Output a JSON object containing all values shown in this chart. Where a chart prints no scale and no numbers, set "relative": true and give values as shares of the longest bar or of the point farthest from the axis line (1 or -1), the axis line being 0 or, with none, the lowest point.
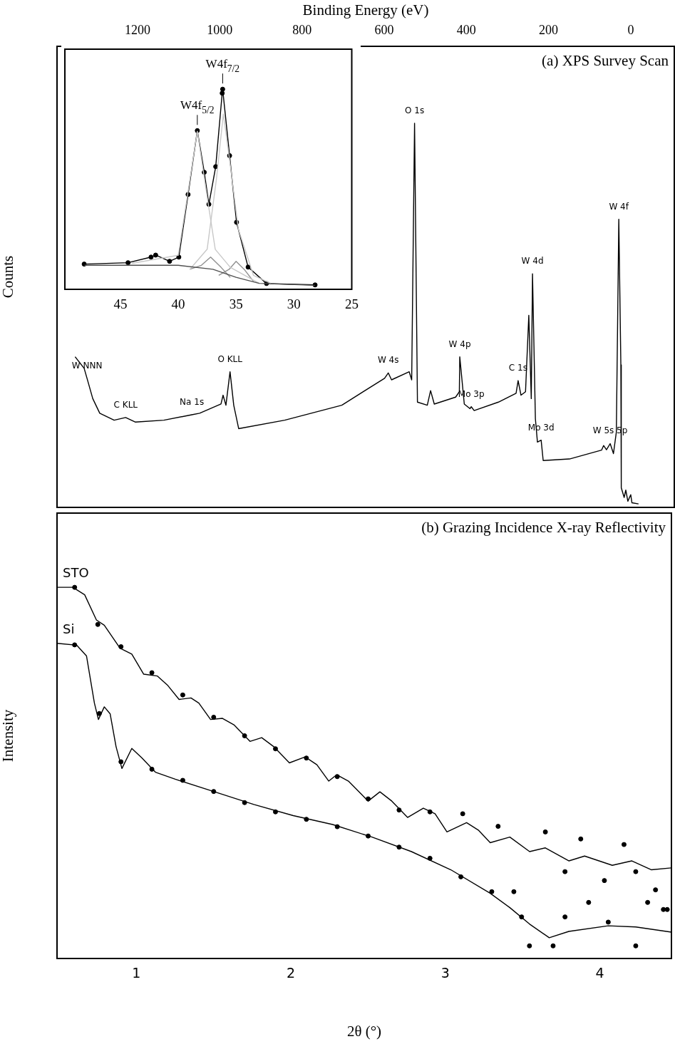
{
  "chart_data": [
    {
      "type": "line",
      "title": "(a) XPS Survey Scan",
      "xlabel": "Binding Energy (eV)",
      "ylabel": "Counts",
      "relative": true,
      "xlim": [
        1396,
        -106
      ],
      "xticks": [
        1200,
        1000,
        800,
        600,
        400,
        200,
        0
      ],
      "series": [
        {
          "color": "#000000",
          "marker": "none",
          "x": [
            1352,
            1330,
            1323,
            1309,
            1292,
            1257,
            1229,
            1205,
            1136,
            1068,
            1049,
            997,
            992,
            985,
            975,
            966,
            954,
            842,
            703,
            599,
            590,
            582,
            539,
            533,
            526,
            519,
            495,
            487,
            478,
            426,
            417,
            416,
            405,
            391,
            388,
            381,
            322,
            279,
            274,
            267,
            256,
            248,
            242,
            239,
            232,
            227,
            218,
            213,
            149,
            71,
            66,
            59,
            50,
            42,
            35,
            29,
            24,
            23,
            16,
            12,
            7,
            0,
            -3,
            -19
          ],
          "values": [
            0.392,
            0.362,
            0.336,
            0.283,
            0.245,
            0.227,
            0.234,
            0.222,
            0.227,
            0.241,
            0.245,
            0.269,
            0.292,
            0.266,
            0.353,
            0.266,
            0.205,
            0.227,
            0.266,
            0.336,
            0.35,
            0.332,
            0.353,
            0.332,
            1.0,
            0.274,
            0.266,
            0.304,
            0.269,
            0.287,
            0.301,
            0.392,
            0.269,
            0.257,
            0.262,
            0.252,
            0.274,
            0.297,
            0.33,
            0.292,
            0.301,
            0.5,
            0.283,
            0.608,
            0.231,
            0.17,
            0.175,
            0.122,
            0.126,
            0.149,
            0.161,
            0.15,
            0.166,
            0.14,
            0.196,
            0.75,
            0.371,
            0.051,
            0.026,
            0.045,
            0.016,
            0.033,
            0.012,
            0.009
          ]
        }
      ],
      "annotations": [
        {
          "text": "W NNN",
          "x": 1323,
          "y": 0.336
        },
        {
          "text": "C KLL",
          "x": 1229,
          "y": 0.234
        },
        {
          "text": "Na 1s",
          "x": 1068,
          "y": 0.241
        },
        {
          "text": "O KLL",
          "x": 975,
          "y": 0.353
        },
        {
          "text": "W 4s",
          "x": 590,
          "y": 0.35
        },
        {
          "text": "O 1s",
          "x": 526,
          "y": 1.0
        },
        {
          "text": "W 4p",
          "x": 416,
          "y": 0.392
        },
        {
          "text": "Mo 3p",
          "x": 388,
          "y": 0.262
        },
        {
          "text": "C 1s",
          "x": 274,
          "y": 0.33
        },
        {
          "text": "W 4d",
          "x": 239,
          "y": 0.608
        },
        {
          "text": "Mo 3d",
          "x": 218,
          "y": 0.175
        },
        {
          "text": "W 5s 5p",
          "x": 50,
          "y": 0.166
        },
        {
          "text": "W 4f",
          "x": 29,
          "y": 0.75
        }
      ]
    },
    {
      "type": "line",
      "relative": true,
      "xlim": [
        49.8,
        25
      ],
      "xticks": [
        45,
        40,
        35,
        30,
        25
      ],
      "series": [
        {
          "color": "#505050",
          "marker": "none",
          "x": [
            48.1,
            40,
            37,
            35,
            33,
            28.2
          ],
          "values": [
            0.12,
            0.12,
            0.1,
            0.06,
            0.03,
            0.02
          ]
        },
        {
          "color": "#c8c8c8",
          "marker": "none",
          "x": [
            44,
            40,
            39.2,
            38.35,
            37.6,
            36.8,
            35.5,
            33
          ],
          "values": [
            0.13,
            0.17,
            0.47,
            0.79,
            0.5,
            0.2,
            0.11,
            0.03
          ]
        },
        {
          "color": "#c8c8c8",
          "marker": "none",
          "x": [
            39,
            37.5,
            36.7,
            36.1,
            35.5,
            34.8,
            33.5,
            32
          ],
          "values": [
            0.1,
            0.2,
            0.55,
            0.876,
            0.62,
            0.3,
            0.07,
            0.03
          ]
        },
        {
          "color": "#909090",
          "marker": "none",
          "x": [
            39,
            38,
            37.2,
            36.3,
            35.5
          ],
          "values": [
            0.1,
            0.12,
            0.161,
            0.11,
            0.06
          ]
        },
        {
          "color": "#909090",
          "marker": "none",
          "x": [
            36.5,
            35.6,
            35.0,
            34.3,
            33.5
          ],
          "values": [
            0.07,
            0.1,
            0.14,
            0.1,
            0.04
          ]
        },
        {
          "color": "#000000",
          "marker": "circle",
          "x": [
            48.13,
            44.34,
            42.35,
            41.95,
            40.75,
            39.95,
            39.15,
            38.35,
            37.75,
            37.35,
            36.76,
            36.2,
            36.16,
            35.56,
            34.96,
            33.96,
            32.37,
            28.17
          ],
          "values": [
            0.126,
            0.133,
            0.161,
            0.171,
            0.14,
            0.161,
            0.474,
            0.793,
            0.585,
            0.425,
            0.613,
            0.98,
            1.0,
            0.668,
            0.335,
            0.111,
            0.029,
            0.022
          ]
        }
      ],
      "annotations": [
        {
          "text": "W4f$_{5/2}$",
          "x": 38.35,
          "y": 0.793
        },
        {
          "text": "W4f$_{7/2}$",
          "x": 36.16,
          "y": 1.0
        }
      ]
    },
    {
      "type": "line",
      "title": "(b) Grazing Incidence X-ray Reflectivity",
      "xlabel": "2θ (°)",
      "ylabel": "Intensity",
      "relative": true,
      "xlim": [
        0.486,
        4.463
      ],
      "xticks": [
        1,
        2,
        3,
        4
      ],
      "series": [
        {
          "name": "STO",
          "color": "#000000",
          "marker": "none",
          "x": [
            0.486,
            0.588,
            0.665,
            0.741,
            0.792,
            0.894,
            0.97,
            1.047,
            1.136,
            1.2,
            1.276,
            1.353,
            1.404,
            1.48,
            1.557,
            1.633,
            1.735,
            1.811,
            1.888,
            1.99,
            2.092,
            2.168,
            2.245,
            2.296,
            2.372,
            2.5,
            2.576,
            2.653,
            2.755,
            2.857,
            2.933,
            3.01,
            3.137,
            3.213,
            3.29,
            3.417,
            3.545,
            3.647,
            3.8,
            3.901,
            4.08,
            4.207,
            4.334,
            4.462
          ],
          "values": [
            1.0,
            1.0,
            0.98,
            0.912,
            0.898,
            0.836,
            0.82,
            0.766,
            0.761,
            0.737,
            0.698,
            0.702,
            0.688,
            0.644,
            0.647,
            0.629,
            0.585,
            0.595,
            0.571,
            0.527,
            0.543,
            0.522,
            0.478,
            0.495,
            0.478,
            0.424,
            0.449,
            0.424,
            0.38,
            0.405,
            0.39,
            0.341,
            0.366,
            0.346,
            0.312,
            0.327,
            0.288,
            0.298,
            0.263,
            0.276,
            0.251,
            0.263,
            0.239,
            0.244
          ]
        },
        {
          "name": "Si",
          "color": "#000000",
          "marker": "none",
          "x": [
            0.486,
            0.614,
            0.677,
            0.728,
            0.754,
            0.792,
            0.83,
            0.868,
            0.906,
            0.97,
            1.034,
            1.123,
            1.251,
            1.506,
            1.76,
            2.015,
            2.27,
            2.525,
            2.78,
            3.035,
            3.289,
            3.417,
            3.544,
            3.672,
            3.799,
            4.054,
            4.232,
            4.462
          ],
          "values": [
            0.849,
            0.844,
            0.815,
            0.688,
            0.644,
            0.678,
            0.659,
            0.571,
            0.512,
            0.566,
            0.541,
            0.502,
            0.483,
            0.449,
            0.415,
            0.385,
            0.361,
            0.327,
            0.288,
            0.239,
            0.176,
            0.137,
            0.093,
            0.056,
            0.073,
            0.088,
            0.085,
            0.071
          ]
        },
        {
          "type": "scatter",
          "color": "#000000",
          "marker": "circle",
          "x": [
            0.6,
            0.75,
            0.9,
            1.1,
            1.3,
            1.5,
            1.7,
            1.9,
            2.1,
            2.3,
            2.5,
            2.7,
            2.9,
            3.112,
            3.341,
            3.647,
            3.774,
            3.876,
            4.029,
            4.156,
            4.232,
            4.36,
            4.436
          ],
          "values": [
            1.0,
            0.9,
            0.84,
            0.77,
            0.71,
            0.65,
            0.6,
            0.565,
            0.54,
            0.49,
            0.43,
            0.4,
            0.395,
            0.39,
            0.356,
            0.341,
            0.234,
            0.322,
            0.21,
            0.307,
            0.234,
            0.185,
            0.132
          ]
        },
        {
          "type": "scatter",
          "color": "#000000",
          "marker": "circle",
          "x": [
            0.6,
            0.76,
            0.9,
            1.1,
            1.3,
            1.5,
            1.7,
            1.9,
            2.1,
            2.3,
            2.5,
            2.7,
            2.9,
            3.1,
            3.3,
            3.443,
            3.493,
            3.544,
            3.697,
            3.774,
            3.927,
            4.054,
            4.232,
            4.309,
            4.411
          ],
          "values": [
            0.845,
            0.66,
            0.53,
            0.51,
            0.48,
            0.45,
            0.42,
            0.395,
            0.375,
            0.355,
            0.33,
            0.3,
            0.27,
            0.22,
            0.18,
            0.18,
            0.112,
            0.034,
            0.034,
            0.112,
            0.151,
            0.098,
            0.034,
            0.151,
            0.132
          ]
        }
      ]
    }
  ]
}
